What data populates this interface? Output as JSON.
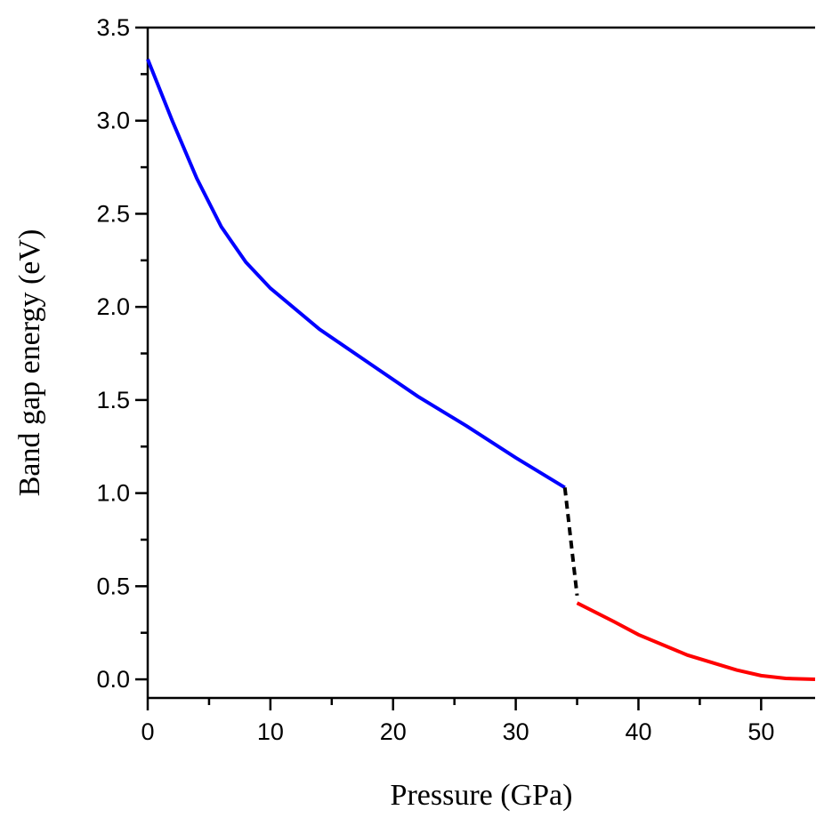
{
  "chart_data": {
    "type": "line",
    "x_label": "Pressure (GPa)",
    "y_label": "Band gap energy (eV)",
    "series": [
      {
        "color": "#0000ff",
        "dash": false,
        "x": [
          0,
          2,
          4,
          6,
          8,
          10,
          14,
          18,
          22,
          26,
          30,
          34
        ],
        "values": [
          3.33,
          3.0,
          2.69,
          2.43,
          2.24,
          2.1,
          1.88,
          1.7,
          1.52,
          1.36,
          1.19,
          1.03
        ]
      },
      {
        "color": "#000000",
        "dash": true,
        "x": [
          34,
          35
        ],
        "values": [
          1.03,
          0.45
        ]
      },
      {
        "color": "#ff0000",
        "dash": false,
        "x": [
          35,
          38,
          40,
          44,
          48,
          50,
          52,
          54.4
        ],
        "values": [
          0.41,
          0.31,
          0.24,
          0.13,
          0.05,
          0.02,
          0.005,
          0
        ]
      }
    ],
    "xlim": [
      0,
      54.4
    ],
    "xticks": [
      0,
      10,
      20,
      30,
      40,
      50
    ],
    "ylim": [
      -0.1,
      3.5
    ],
    "yticks": [
      {
        "value": 0,
        "label": "0.0"
      },
      0.5,
      {
        "value": 1,
        "label": "1.0"
      },
      1.5,
      {
        "value": 2,
        "label": "2.0"
      },
      2.5,
      {
        "value": 3,
        "label": "3.0"
      },
      3.5
    ]
  }
}
